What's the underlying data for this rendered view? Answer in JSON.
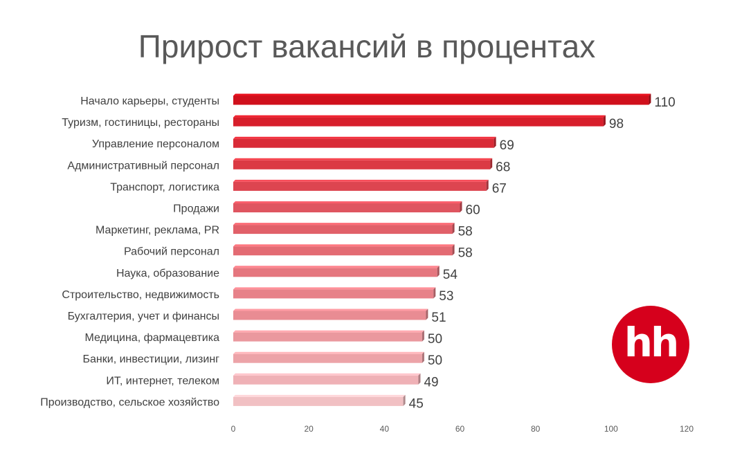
{
  "chart_data": {
    "type": "bar",
    "orientation": "horizontal",
    "title": "Прирост вакансий в процентах",
    "xlabel": "",
    "ylabel": "",
    "xlim": [
      0,
      120
    ],
    "x_ticks": [
      "0",
      "20",
      "40",
      "60",
      "80",
      "100",
      "120"
    ],
    "grid": false,
    "categories": [
      "Начало карьеры, студенты",
      "Туризм, гостиницы, рестораны",
      "Управление персоналом",
      "Административный персонал",
      "Транспорт, логистика",
      "Продажи",
      "Маркетинг, реклама, PR",
      "Рабочий персонал",
      "Наука, образование",
      "Строительство, недвижимость",
      "Бухгалтерия, учет и финансы",
      "Медицина, фармацевтика",
      "Банки, инвестиции, лизинг",
      "ИТ, интернет, телеком",
      "Производство, сельское хозяйство"
    ],
    "values": [
      110,
      98,
      69,
      68,
      67,
      60,
      58,
      58,
      54,
      53,
      51,
      50,
      50,
      49,
      45
    ],
    "data_labels": [
      "110",
      "98",
      "69",
      "68",
      "67",
      "60",
      "58",
      "58",
      "54",
      "53",
      "51",
      "50",
      "50",
      "49",
      "45"
    ],
    "bar_colors": [
      "#d0101c",
      "#d71f2b",
      "#d92b37",
      "#db3a44",
      "#dd4550",
      "#df5560",
      "#e16069",
      "#e36b73",
      "#e5767e",
      "#e78189",
      "#e98c93",
      "#ea989e",
      "#eca3a8",
      "#efb1b6",
      "#f1c0c3"
    ],
    "label_color": "#404040",
    "tick_color": "#595959"
  },
  "logo": {
    "text": "hh",
    "color": "#d6001c"
  }
}
